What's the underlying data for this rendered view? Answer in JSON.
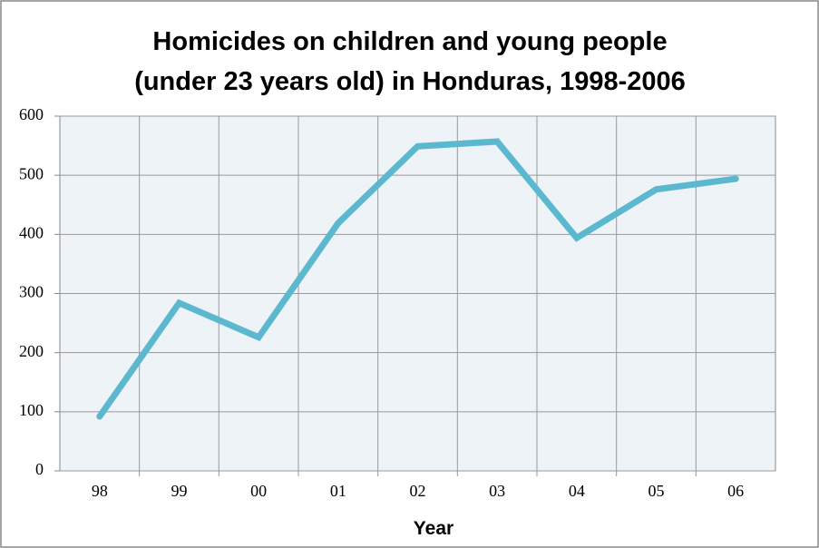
{
  "chart_data": {
    "type": "line",
    "title": [
      "Homicides on children and young people",
      "(under 23 years old) in Honduras, 1998-2006"
    ],
    "x_label": "Year",
    "categories": [
      "98",
      "99",
      "00",
      "01",
      "02",
      "03",
      "04",
      "05",
      "06"
    ],
    "values": [
      92,
      284,
      226,
      419,
      549,
      557,
      394,
      476,
      494
    ],
    "color": "#5bb8cf",
    "ylim": [
      0,
      600
    ],
    "yticks": [
      0,
      100,
      200,
      300,
      400,
      500,
      600
    ],
    "grid": true
  }
}
